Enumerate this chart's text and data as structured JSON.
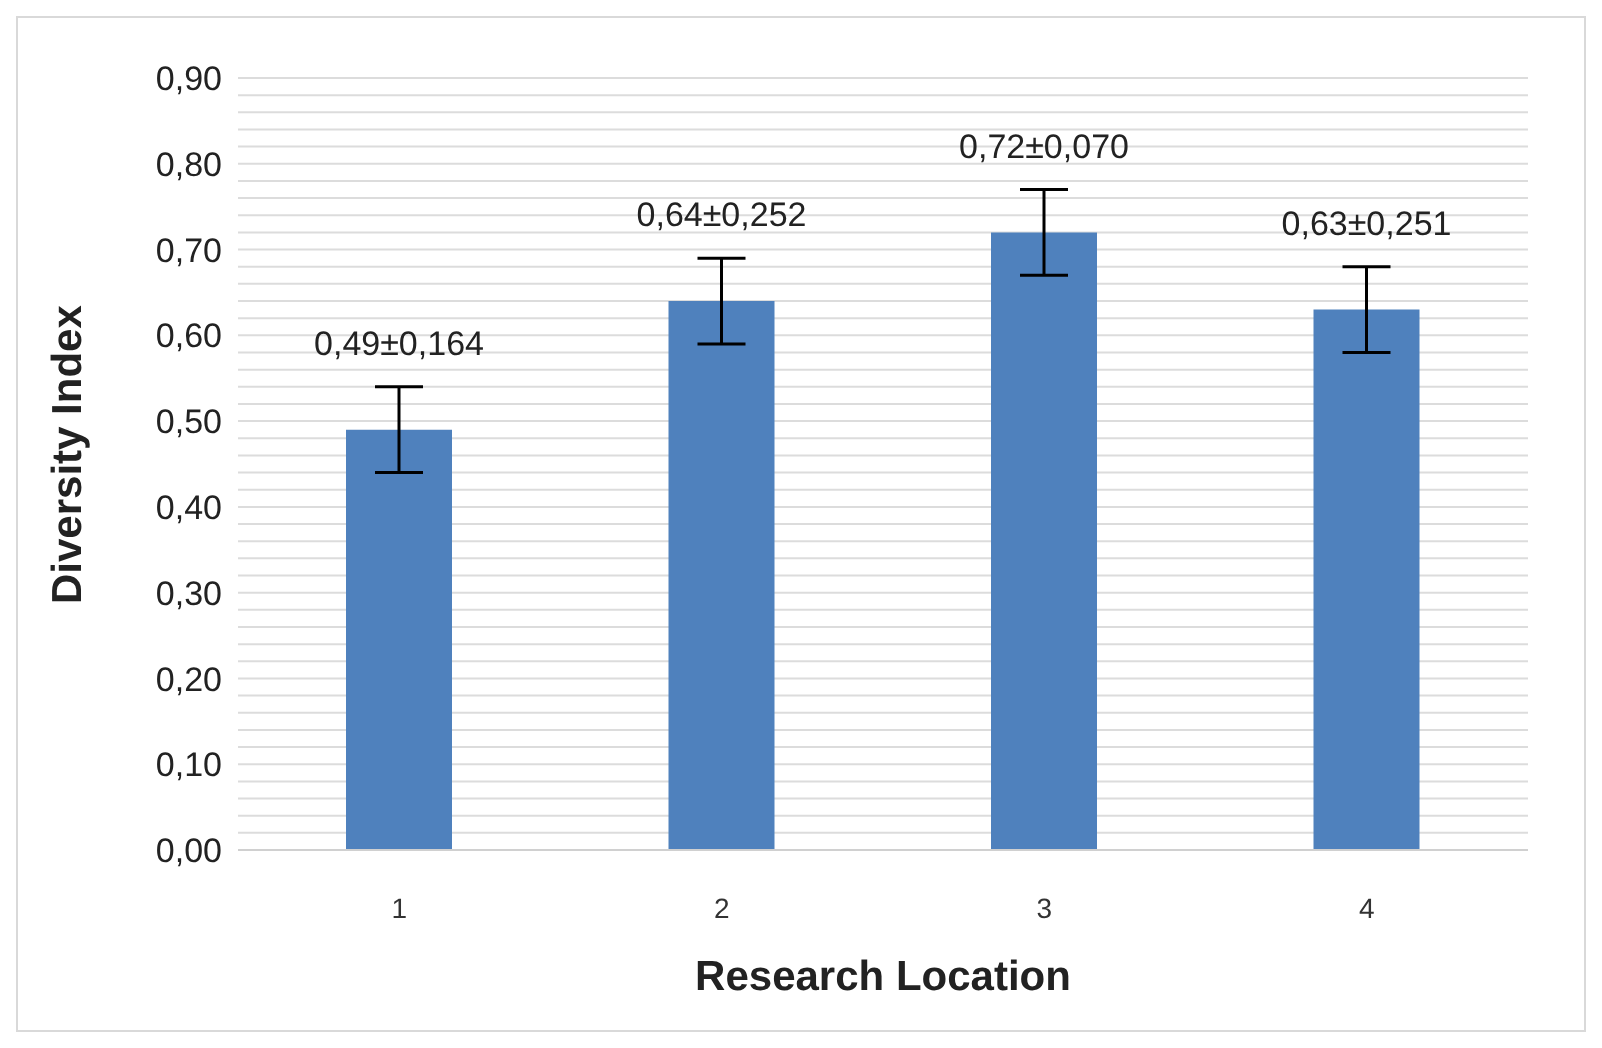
{
  "chart_data": {
    "type": "bar",
    "xlabel": "Research Location",
    "ylabel": "Diversity Index",
    "categories": [
      "1",
      "2",
      "3",
      "4"
    ],
    "values": [
      0.49,
      0.64,
      0.72,
      0.63
    ],
    "errors": [
      0.05,
      0.05,
      0.05,
      0.05
    ],
    "value_labels": [
      "0,49±0,164",
      "0,64±0,252",
      "0,72±0,070",
      "0,63±0,251"
    ],
    "color": "#4f81bd",
    "ylim": [
      0,
      0.9
    ],
    "yticks": [
      {
        "value": 0,
        "label": "0,00"
      },
      {
        "value": 0.02,
        "label": null
      },
      {
        "value": 0.04,
        "label": null
      },
      {
        "value": 0.06,
        "label": null
      },
      {
        "value": 0.08,
        "label": null
      },
      {
        "value": 0.1,
        "label": "0,10"
      },
      {
        "value": 0.12,
        "label": null
      },
      {
        "value": 0.14,
        "label": null
      },
      {
        "value": 0.16,
        "label": null
      },
      {
        "value": 0.18,
        "label": null
      },
      {
        "value": 0.2,
        "label": "0,20"
      },
      {
        "value": 0.22,
        "label": null
      },
      {
        "value": 0.24,
        "label": null
      },
      {
        "value": 0.26,
        "label": null
      },
      {
        "value": 0.28,
        "label": null
      },
      {
        "value": 0.3,
        "label": "0,30"
      },
      {
        "value": 0.32,
        "label": null
      },
      {
        "value": 0.34,
        "label": null
      },
      {
        "value": 0.36,
        "label": null
      },
      {
        "value": 0.38,
        "label": null
      },
      {
        "value": 0.4,
        "label": "0,40"
      },
      {
        "value": 0.42,
        "label": null
      },
      {
        "value": 0.44,
        "label": null
      },
      {
        "value": 0.46,
        "label": null
      },
      {
        "value": 0.48,
        "label": null
      },
      {
        "value": 0.5,
        "label": "0,50"
      },
      {
        "value": 0.52,
        "label": null
      },
      {
        "value": 0.54,
        "label": null
      },
      {
        "value": 0.56,
        "label": null
      },
      {
        "value": 0.58,
        "label": null
      },
      {
        "value": 0.6,
        "label": "0,60"
      },
      {
        "value": 0.62,
        "label": null
      },
      {
        "value": 0.64,
        "label": null
      },
      {
        "value": 0.66,
        "label": null
      },
      {
        "value": 0.68,
        "label": null
      },
      {
        "value": 0.7,
        "label": "0,70"
      },
      {
        "value": 0.72,
        "label": null
      },
      {
        "value": 0.74,
        "label": null
      },
      {
        "value": 0.76,
        "label": null
      },
      {
        "value": 0.78,
        "label": null
      },
      {
        "value": 0.8,
        "label": "0,80"
      },
      {
        "value": 0.82,
        "label": null
      },
      {
        "value": 0.84,
        "label": null
      },
      {
        "value": 0.86,
        "label": null
      },
      {
        "value": 0.88,
        "label": null
      },
      {
        "value": 0.9,
        "label": "0,90"
      }
    ],
    "grid": "y"
  }
}
